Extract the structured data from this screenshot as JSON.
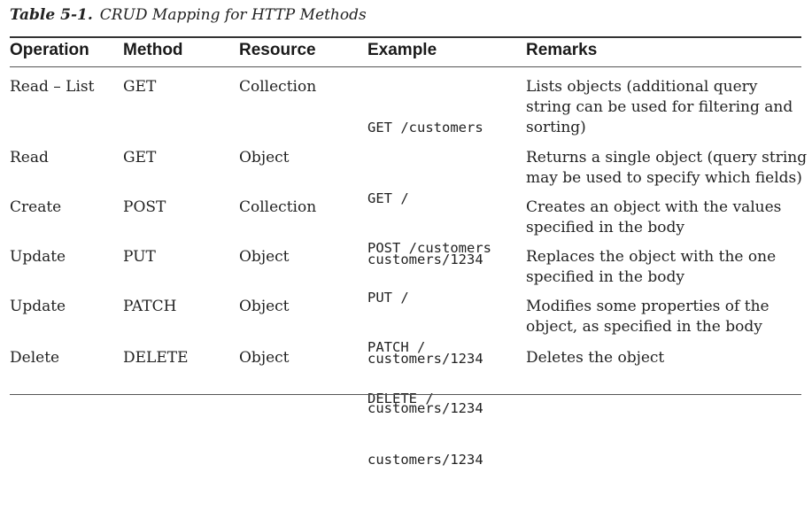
{
  "caption": {
    "label": "Table 5-1.",
    "title": "CRUD Mapping for HTTP Methods"
  },
  "table": {
    "headers": [
      "Operation",
      "Method",
      "Resource",
      "Example",
      "Remarks"
    ],
    "rows": [
      {
        "operation": "Read – List",
        "method": "GET",
        "resource": "Collection",
        "example": [
          "GET /customers"
        ],
        "remarks": [
          "Lists objects (additional query",
          "string can be used for filtering and",
          "sorting)"
        ]
      },
      {
        "operation": "Read",
        "method": "GET",
        "resource": "Object",
        "example": [
          "GET /",
          "customers/1234"
        ],
        "remarks": [
          "Returns a single object (query string",
          "may be used to specify which fields)"
        ]
      },
      {
        "operation": "Create",
        "method": "POST",
        "resource": "Collection",
        "example": [
          "POST /customers"
        ],
        "remarks": [
          "Creates an object with the values",
          "specified in the body"
        ]
      },
      {
        "operation": "Update",
        "method": "PUT",
        "resource": "Object",
        "example": [
          "PUT /",
          "customers/1234"
        ],
        "remarks": [
          "Replaces the object with the one",
          "specified in the body"
        ]
      },
      {
        "operation": "Update",
        "method": "PATCH",
        "resource": "Object",
        "example": [
          "PATCH /",
          "customers/1234"
        ],
        "remarks": [
          "Modifies some properties of the",
          "object, as specified in the body"
        ]
      },
      {
        "operation": "Delete",
        "method": "DELETE",
        "resource": "Object",
        "example": [
          "DELETE /",
          "customers/1234"
        ],
        "remarks": [
          "Deletes the object"
        ]
      }
    ]
  }
}
